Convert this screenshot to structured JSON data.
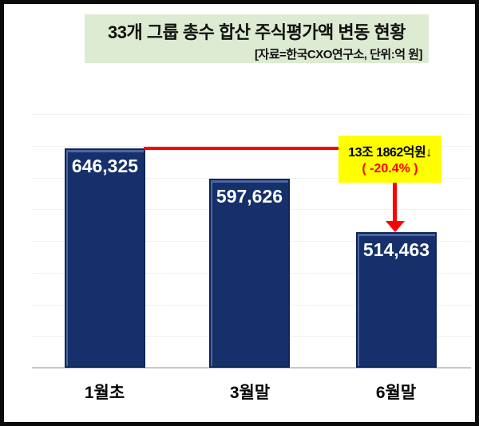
{
  "header": {
    "title": "33개 그룹 총수 합산 주식평가액 변동 현황",
    "subtitle": "[자료=한국CXO연구소, 단위:억 원]"
  },
  "chart_data": {
    "type": "bar",
    "title": "33개 그룹 총수 합산 주식평가액 변동 현황",
    "source_note": "[자료=한국CXO연구소, 단위:억 원]",
    "categories": [
      "1월초",
      "3월말",
      "6월말"
    ],
    "values": [
      646325,
      597626,
      514463
    ],
    "value_labels": [
      "646,325",
      "597,626",
      "514,463"
    ],
    "xlabel": "",
    "ylabel": "",
    "unit": "억 원",
    "ylim": [
      300000,
      700000
    ],
    "gridline_step": 50000,
    "grid": true,
    "legend": "none",
    "annotation": {
      "line1": "13조 1862억원↓",
      "line2": "( -20.4% )",
      "from_category": "1월초",
      "to_category": "6월말"
    }
  },
  "colors": {
    "bar_fill": "#16306b",
    "bar_border": "#0f2557",
    "bar_value_text": "#ffffff",
    "header_background": "#dcebd1",
    "annotation_box": "#ffff00",
    "annotation_accent": "#fe0000",
    "gridline": "#f1f1f1",
    "axis_line": "#c9c9c9",
    "frame_border": "#0b0b0b"
  }
}
